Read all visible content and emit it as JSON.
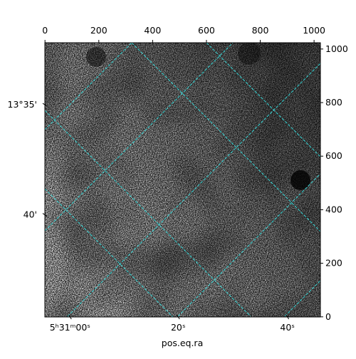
{
  "chart_data": {
    "type": "image",
    "xlabel": "pos.eq.ra",
    "xlim": [
      -0.5,
      1023.5
    ],
    "ylim": [
      -0.5,
      1023.5
    ],
    "xticks": [
      0,
      200,
      400,
      600,
      800,
      1000
    ],
    "yticks": [
      0,
      200,
      400,
      600,
      800,
      1000
    ],
    "ra_ticks": [
      {
        "value": 93,
        "label": "5ʰ31ᵐ00ˢ"
      },
      {
        "value": 495,
        "label": "20ˢ"
      },
      {
        "value": 901,
        "label": "40ˢ"
      }
    ],
    "dec_ticks": [
      {
        "value": 792,
        "label": "13°35'"
      },
      {
        "value": 381,
        "label": "40'"
      }
    ],
    "grid": true
  }
}
